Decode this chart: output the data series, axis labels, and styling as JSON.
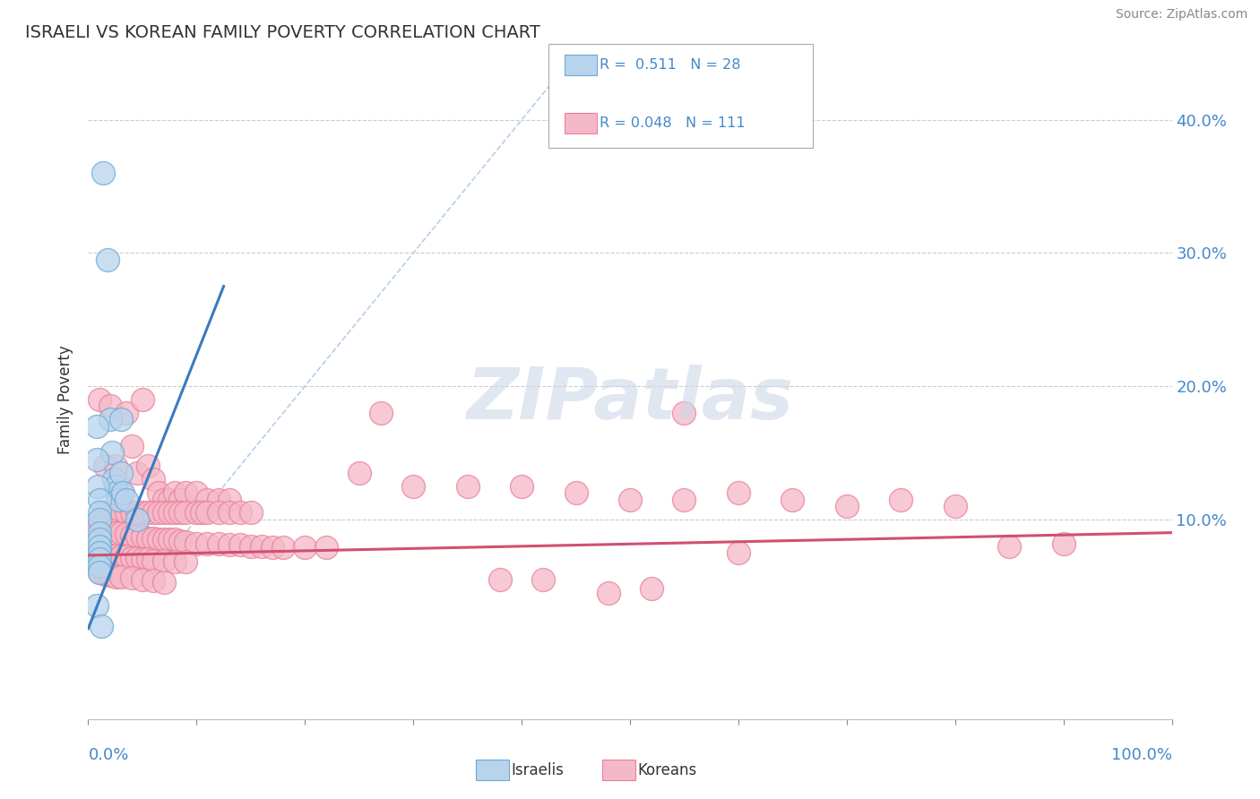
{
  "title": "ISRAELI VS KOREAN FAMILY POVERTY CORRELATION CHART",
  "source": "Source: ZipAtlas.com",
  "ylabel": "Family Poverty",
  "yticks": [
    0.0,
    0.1,
    0.2,
    0.3,
    0.4
  ],
  "ytick_labels": [
    "",
    "10.0%",
    "20.0%",
    "30.0%",
    "40.0%"
  ],
  "xlim": [
    0,
    1.0
  ],
  "ylim": [
    -0.05,
    0.43
  ],
  "israeli_color": "#b8d4ed",
  "korean_color": "#f5b8c8",
  "israeli_edge": "#6aaad4",
  "korean_edge": "#e8809a",
  "trend_israeli_color": "#3a7bbf",
  "trend_korean_color": "#d05070",
  "ref_line_color": "#b0c8e8",
  "legend_color": "#4488cc",
  "watermark_color": "#ccd8e8",
  "israeli_trend_x": [
    0.0,
    0.125
  ],
  "israeli_trend_y": [
    0.018,
    0.275
  ],
  "korean_trend_x": [
    0.0,
    1.0
  ],
  "korean_trend_y": [
    0.073,
    0.09
  ],
  "ref_line_x": [
    0.05,
    0.43
  ],
  "ref_line_y": [
    0.05,
    0.43
  ],
  "israeli_points": [
    [
      0.014,
      0.36
    ],
    [
      0.018,
      0.295
    ],
    [
      0.02,
      0.175
    ],
    [
      0.022,
      0.15
    ],
    [
      0.024,
      0.13
    ],
    [
      0.025,
      0.125
    ],
    [
      0.026,
      0.12
    ],
    [
      0.028,
      0.115
    ],
    [
      0.03,
      0.175
    ],
    [
      0.03,
      0.135
    ],
    [
      0.032,
      0.12
    ],
    [
      0.035,
      0.115
    ],
    [
      0.008,
      0.17
    ],
    [
      0.008,
      0.145
    ],
    [
      0.009,
      0.125
    ],
    [
      0.01,
      0.115
    ],
    [
      0.01,
      0.105
    ],
    [
      0.01,
      0.1
    ],
    [
      0.01,
      0.09
    ],
    [
      0.01,
      0.085
    ],
    [
      0.01,
      0.08
    ],
    [
      0.01,
      0.075
    ],
    [
      0.01,
      0.07
    ],
    [
      0.01,
      0.065
    ],
    [
      0.01,
      0.06
    ],
    [
      0.045,
      0.1
    ],
    [
      0.008,
      0.035
    ],
    [
      0.012,
      0.02
    ]
  ],
  "korean_points": [
    [
      0.01,
      0.19
    ],
    [
      0.015,
      0.14
    ],
    [
      0.02,
      0.185
    ],
    [
      0.025,
      0.14
    ],
    [
      0.03,
      0.12
    ],
    [
      0.035,
      0.18
    ],
    [
      0.04,
      0.155
    ],
    [
      0.045,
      0.135
    ],
    [
      0.05,
      0.19
    ],
    [
      0.055,
      0.14
    ],
    [
      0.06,
      0.13
    ],
    [
      0.065,
      0.12
    ],
    [
      0.07,
      0.115
    ],
    [
      0.075,
      0.115
    ],
    [
      0.08,
      0.12
    ],
    [
      0.085,
      0.115
    ],
    [
      0.09,
      0.12
    ],
    [
      0.1,
      0.12
    ],
    [
      0.11,
      0.115
    ],
    [
      0.12,
      0.115
    ],
    [
      0.13,
      0.115
    ],
    [
      0.015,
      0.105
    ],
    [
      0.02,
      0.105
    ],
    [
      0.025,
      0.105
    ],
    [
      0.03,
      0.105
    ],
    [
      0.035,
      0.105
    ],
    [
      0.04,
      0.105
    ],
    [
      0.045,
      0.105
    ],
    [
      0.05,
      0.105
    ],
    [
      0.055,
      0.105
    ],
    [
      0.06,
      0.105
    ],
    [
      0.065,
      0.105
    ],
    [
      0.07,
      0.105
    ],
    [
      0.075,
      0.105
    ],
    [
      0.08,
      0.105
    ],
    [
      0.085,
      0.105
    ],
    [
      0.09,
      0.105
    ],
    [
      0.1,
      0.105
    ],
    [
      0.105,
      0.105
    ],
    [
      0.11,
      0.105
    ],
    [
      0.12,
      0.105
    ],
    [
      0.13,
      0.105
    ],
    [
      0.14,
      0.105
    ],
    [
      0.15,
      0.105
    ],
    [
      0.01,
      0.095
    ],
    [
      0.015,
      0.093
    ],
    [
      0.02,
      0.092
    ],
    [
      0.025,
      0.09
    ],
    [
      0.03,
      0.09
    ],
    [
      0.035,
      0.089
    ],
    [
      0.04,
      0.088
    ],
    [
      0.045,
      0.087
    ],
    [
      0.05,
      0.087
    ],
    [
      0.055,
      0.086
    ],
    [
      0.06,
      0.086
    ],
    [
      0.065,
      0.085
    ],
    [
      0.07,
      0.085
    ],
    [
      0.075,
      0.085
    ],
    [
      0.08,
      0.085
    ],
    [
      0.085,
      0.084
    ],
    [
      0.09,
      0.083
    ],
    [
      0.1,
      0.082
    ],
    [
      0.11,
      0.082
    ],
    [
      0.12,
      0.082
    ],
    [
      0.13,
      0.081
    ],
    [
      0.14,
      0.081
    ],
    [
      0.15,
      0.08
    ],
    [
      0.16,
      0.08
    ],
    [
      0.17,
      0.079
    ],
    [
      0.18,
      0.079
    ],
    [
      0.2,
      0.079
    ],
    [
      0.22,
      0.079
    ],
    [
      0.01,
      0.075
    ],
    [
      0.015,
      0.074
    ],
    [
      0.02,
      0.073
    ],
    [
      0.025,
      0.073
    ],
    [
      0.03,
      0.072
    ],
    [
      0.035,
      0.072
    ],
    [
      0.04,
      0.071
    ],
    [
      0.045,
      0.071
    ],
    [
      0.05,
      0.07
    ],
    [
      0.055,
      0.07
    ],
    [
      0.06,
      0.069
    ],
    [
      0.07,
      0.069
    ],
    [
      0.08,
      0.068
    ],
    [
      0.09,
      0.068
    ],
    [
      0.01,
      0.06
    ],
    [
      0.015,
      0.059
    ],
    [
      0.02,
      0.058
    ],
    [
      0.025,
      0.057
    ],
    [
      0.03,
      0.057
    ],
    [
      0.04,
      0.056
    ],
    [
      0.05,
      0.055
    ],
    [
      0.06,
      0.054
    ],
    [
      0.07,
      0.053
    ],
    [
      0.25,
      0.135
    ],
    [
      0.3,
      0.125
    ],
    [
      0.35,
      0.125
    ],
    [
      0.4,
      0.125
    ],
    [
      0.45,
      0.12
    ],
    [
      0.5,
      0.115
    ],
    [
      0.55,
      0.115
    ],
    [
      0.6,
      0.12
    ],
    [
      0.65,
      0.115
    ],
    [
      0.7,
      0.11
    ],
    [
      0.75,
      0.115
    ],
    [
      0.8,
      0.11
    ],
    [
      0.85,
      0.08
    ],
    [
      0.9,
      0.082
    ],
    [
      0.27,
      0.18
    ],
    [
      0.55,
      0.18
    ],
    [
      0.6,
      0.075
    ],
    [
      0.38,
      0.055
    ],
    [
      0.42,
      0.055
    ],
    [
      0.48,
      0.045
    ],
    [
      0.52,
      0.048
    ]
  ]
}
